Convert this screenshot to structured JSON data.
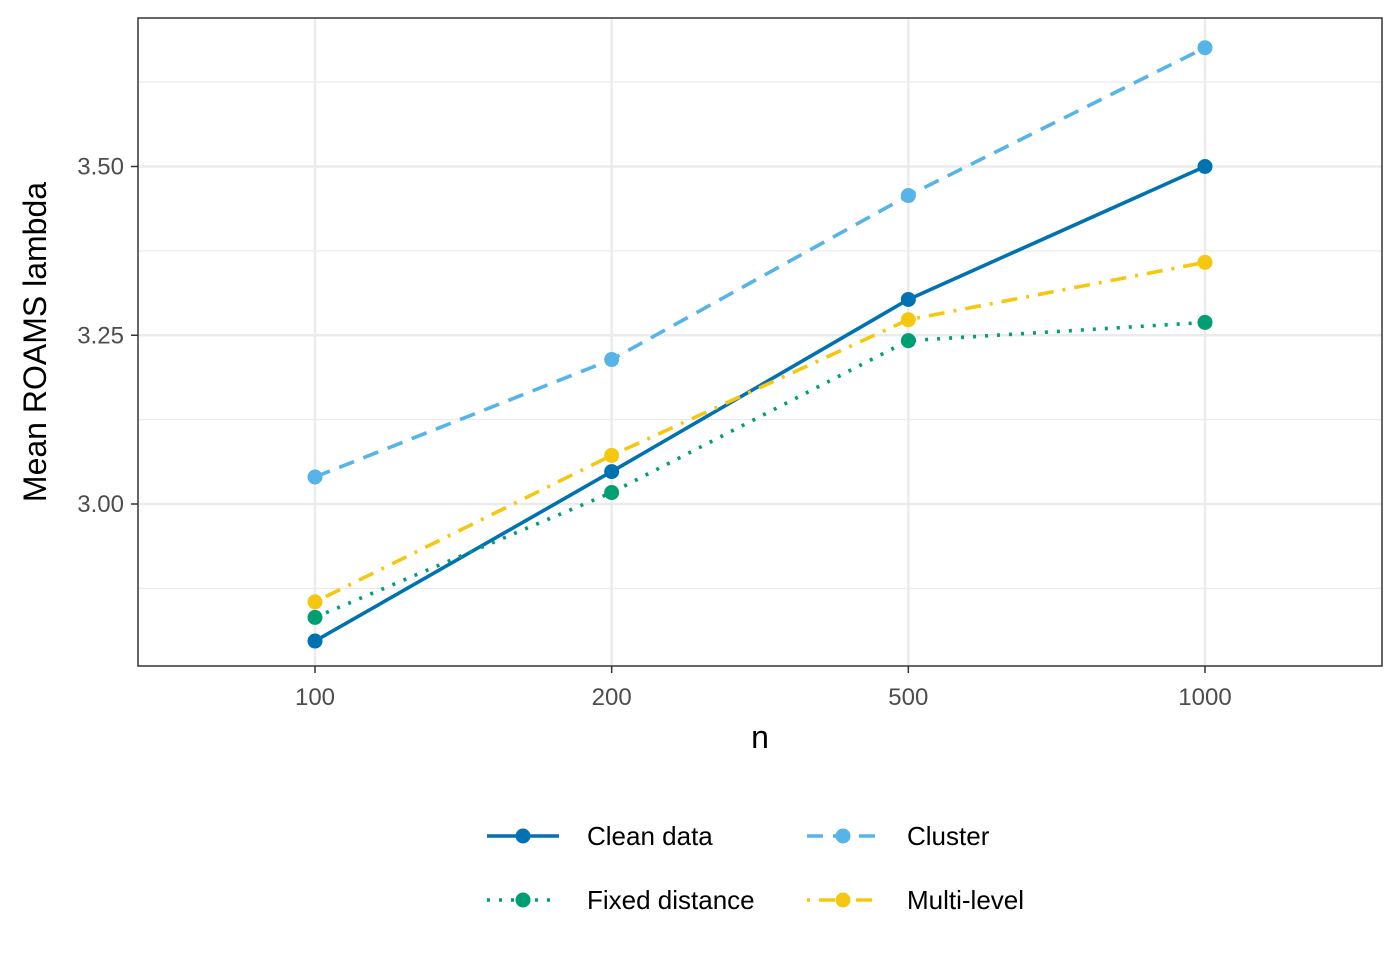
{
  "chart_data": {
    "type": "line",
    "x_categories": [
      "100",
      "200",
      "500",
      "1000"
    ],
    "xlabel": "n",
    "ylabel": "Mean ROAMS lambda",
    "ylim": [
      2.76,
      3.72
    ],
    "yticks": [
      3.0,
      3.25,
      3.5
    ],
    "ytick_labels": [
      "3.00",
      "3.25",
      "3.50"
    ],
    "y_minor_ticks": [
      2.875,
      3.125,
      3.375,
      3.625
    ],
    "grid": true,
    "legend_position": "bottom",
    "series": [
      {
        "name": "Clean data",
        "color": "#0072B2",
        "dash": "solid",
        "values": [
          2.797,
          3.048,
          3.303,
          3.5
        ]
      },
      {
        "name": "Cluster",
        "color": "#56B4E9",
        "dash": "dashed",
        "values": [
          3.04,
          3.214,
          3.457,
          3.676
        ]
      },
      {
        "name": "Fixed distance",
        "color": "#009E73",
        "dash": "dotted",
        "values": [
          2.832,
          3.017,
          3.242,
          3.269
        ]
      },
      {
        "name": "Multi-level",
        "color": "#F5C710",
        "dash": "dotdash",
        "values": [
          2.855,
          3.072,
          3.273,
          3.358
        ]
      }
    ]
  }
}
